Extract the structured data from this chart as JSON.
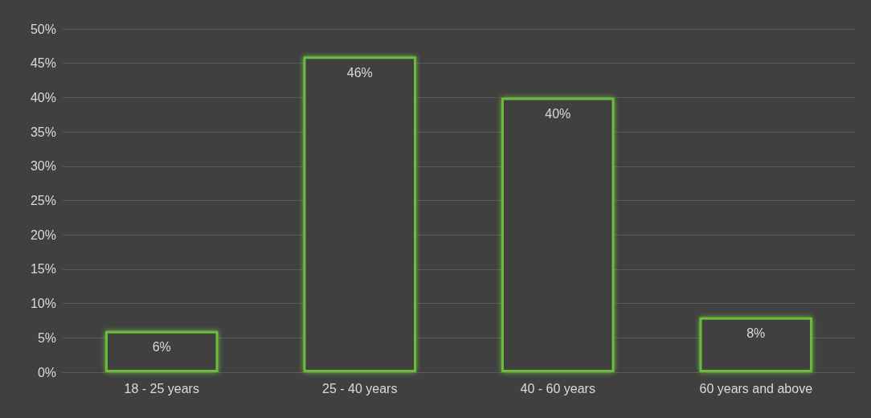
{
  "chart_data": {
    "type": "bar",
    "categories": [
      "18 - 25 years",
      "25 - 40 years",
      "40 - 60 years",
      "60 years and above"
    ],
    "values": [
      6,
      46,
      40,
      8
    ],
    "value_labels": [
      "6%",
      "46%",
      "40%",
      "8%"
    ],
    "color": "#6dbb3c",
    "ylim": [
      0,
      50
    ],
    "yticks": [
      {
        "value": 0,
        "label": "0%"
      },
      {
        "value": 5,
        "label": "5%"
      },
      {
        "value": 10,
        "label": "10%"
      },
      {
        "value": 15,
        "label": "15%"
      },
      {
        "value": 20,
        "label": "20%"
      },
      {
        "value": 25,
        "label": "25%"
      },
      {
        "value": 30,
        "label": "30%"
      },
      {
        "value": 35,
        "label": "35%"
      },
      {
        "value": 40,
        "label": "40%"
      },
      {
        "value": 45,
        "label": "45%"
      },
      {
        "value": 50,
        "label": "50%"
      }
    ],
    "grid": "y"
  }
}
